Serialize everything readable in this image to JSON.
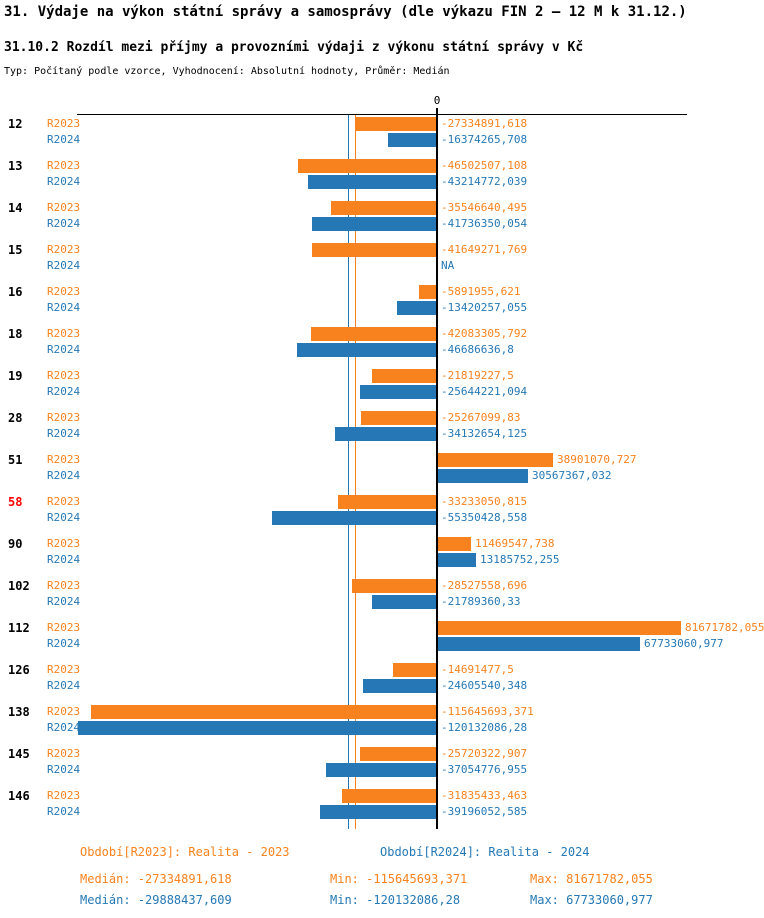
{
  "title": "31. Výdaje na výkon státní správy a samosprávy (dle výkazu FIN 2 – 12 M k 31.12.)",
  "subtitle": "31.10.2 Rozdíl mezi příjmy a provozními výdaji z výkonu státní správy v Kč",
  "meta": "Typ: Počítaný podle vzorce, Vyhodnocení: Absolutní hodnoty, Průměr: Medián",
  "colors": {
    "r2023": "#f8821d",
    "r2024": "#2578b5",
    "highlight": "#ff0000",
    "axis": "#000000"
  },
  "chart_data": {
    "type": "bar",
    "orientation": "horizontal",
    "zero_label": "0",
    "na_text": "NA",
    "series_names": [
      "R2023",
      "R2024"
    ],
    "medians": {
      "r2023": -27334891.618,
      "r2024": -29888437.609
    },
    "axis_range_hint": [
      -130000000,
      105000000
    ],
    "highlighted_categories": [
      "58"
    ],
    "rows": [
      {
        "category": "12",
        "highlight": false,
        "r2023": {
          "value": -27334891.618,
          "label": "-27334891,618"
        },
        "r2024": {
          "value": -16374265.708,
          "label": "-16374265,708"
        }
      },
      {
        "category": "13",
        "highlight": false,
        "r2023": {
          "value": -46502507.108,
          "label": "-46502507,108"
        },
        "r2024": {
          "value": -43214772.039,
          "label": "-43214772,039"
        }
      },
      {
        "category": "14",
        "highlight": false,
        "r2023": {
          "value": -35546640.495,
          "label": "-35546640,495"
        },
        "r2024": {
          "value": -41736350.054,
          "label": "-41736350,054"
        }
      },
      {
        "category": "15",
        "highlight": false,
        "r2023": {
          "value": -41649271.769,
          "label": "-41649271,769"
        },
        "r2024": {
          "value": null,
          "label": "NA"
        }
      },
      {
        "category": "16",
        "highlight": false,
        "r2023": {
          "value": -5891955.621,
          "label": "-5891955,621"
        },
        "r2024": {
          "value": -13420257.055,
          "label": "-13420257,055"
        }
      },
      {
        "category": "18",
        "highlight": false,
        "r2023": {
          "value": -42083305.792,
          "label": "-42083305,792"
        },
        "r2024": {
          "value": -46686636.8,
          "label": "-46686636,8"
        }
      },
      {
        "category": "19",
        "highlight": false,
        "r2023": {
          "value": -21819227.5,
          "label": "-21819227,5"
        },
        "r2024": {
          "value": -25644221.094,
          "label": "-25644221,094"
        }
      },
      {
        "category": "28",
        "highlight": false,
        "r2023": {
          "value": -25267099.83,
          "label": "-25267099,83"
        },
        "r2024": {
          "value": -34132654.125,
          "label": "-34132654,125"
        }
      },
      {
        "category": "51",
        "highlight": false,
        "r2023": {
          "value": 38901070.727,
          "label": "38901070,727"
        },
        "r2024": {
          "value": 30567367.032,
          "label": "30567367,032"
        }
      },
      {
        "category": "58",
        "highlight": true,
        "r2023": {
          "value": -33233050.815,
          "label": "-33233050,815"
        },
        "r2024": {
          "value": -55350428.558,
          "label": "-55350428,558"
        }
      },
      {
        "category": "90",
        "highlight": false,
        "r2023": {
          "value": 11469547.738,
          "label": "11469547,738"
        },
        "r2024": {
          "value": 13185752.255,
          "label": "13185752,255"
        }
      },
      {
        "category": "102",
        "highlight": false,
        "r2023": {
          "value": -28527558.696,
          "label": "-28527558,696"
        },
        "r2024": {
          "value": -21789360.33,
          "label": "-21789360,33"
        }
      },
      {
        "category": "112",
        "highlight": false,
        "r2023": {
          "value": 81671782.055,
          "label": "81671782,055"
        },
        "r2024": {
          "value": 67733060.977,
          "label": "67733060,977"
        }
      },
      {
        "category": "126",
        "highlight": false,
        "r2023": {
          "value": -14691477.5,
          "label": "-14691477,5"
        },
        "r2024": {
          "value": -24605540.348,
          "label": "-24605540,348"
        }
      },
      {
        "category": "138",
        "highlight": false,
        "r2023": {
          "value": -115645693.371,
          "label": "-115645693,371"
        },
        "r2024": {
          "value": -120132086.28,
          "label": "-120132086,28"
        }
      },
      {
        "category": "145",
        "highlight": false,
        "r2023": {
          "value": -25720322.907,
          "label": "-25720322,907"
        },
        "r2024": {
          "value": -37054776.955,
          "label": "-37054776,955"
        }
      },
      {
        "category": "146",
        "highlight": false,
        "r2023": {
          "value": -31835433.463,
          "label": "-31835433,463"
        },
        "r2024": {
          "value": -39196052.585,
          "label": "-39196052,585"
        }
      }
    ]
  },
  "legend": {
    "r2023": "Období[R2023]: Realita - 2023",
    "r2024": "Období[R2024]: Realita - 2024"
  },
  "stats": {
    "r2023": {
      "median": "Medián: -27334891,618",
      "min": "Min: -115645693,371",
      "max": "Max: 81671782,055"
    },
    "r2024": {
      "median": "Medián: -29888437,609",
      "min": "Min: -120132086,28",
      "max": "Max: 67733060,977"
    }
  }
}
